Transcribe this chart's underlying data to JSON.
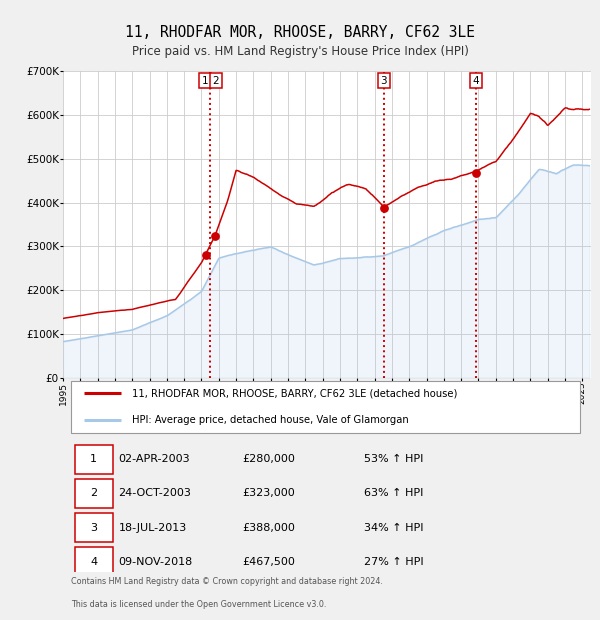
{
  "title": "11, RHODFAR MOR, RHOOSE, BARRY, CF62 3LE",
  "subtitle": "Price paid vs. HM Land Registry's House Price Index (HPI)",
  "title_fontsize": 11,
  "subtitle_fontsize": 9,
  "background_color": "#f0f0f0",
  "plot_bg_color": "#ffffff",
  "grid_color": "#cccccc",
  "hpi_line_color": "#a8c8e8",
  "price_line_color": "#cc0000",
  "sale_marker_color": "#cc0000",
  "vline_color": "#cc0000",
  "ylim": [
    0,
    700000
  ],
  "yticks": [
    0,
    100000,
    200000,
    300000,
    400000,
    500000,
    600000,
    700000
  ],
  "ytick_labels": [
    "£0",
    "£100K",
    "£200K",
    "£300K",
    "£400K",
    "£500K",
    "£600K",
    "£700K"
  ],
  "xlim_start": 1995.0,
  "xlim_end": 2025.5,
  "xtick_years": [
    1995,
    1996,
    1997,
    1998,
    1999,
    2000,
    2001,
    2002,
    2003,
    2004,
    2005,
    2006,
    2007,
    2008,
    2009,
    2010,
    2011,
    2012,
    2013,
    2014,
    2015,
    2016,
    2017,
    2018,
    2019,
    2020,
    2021,
    2022,
    2023,
    2024,
    2025
  ],
  "sales": [
    {
      "num": 1,
      "date": "02-APR-2003",
      "year": 2003.25,
      "price": 280000,
      "pct": "53% ↑ HPI"
    },
    {
      "num": 2,
      "date": "24-OCT-2003",
      "year": 2003.8,
      "price": 323000,
      "pct": "63% ↑ HPI"
    },
    {
      "num": 3,
      "date": "18-JUL-2013",
      "year": 2013.54,
      "price": 388000,
      "pct": "34% ↑ HPI"
    },
    {
      "num": 4,
      "date": "09-NOV-2018",
      "year": 2018.85,
      "price": 467500,
      "pct": "27% ↑ HPI"
    }
  ],
  "label_property": "11, RHODFAR MOR, RHOOSE, BARRY, CF62 3LE (detached house)",
  "label_hpi": "HPI: Average price, detached house, Vale of Glamorgan",
  "footer_line1": "Contains HM Land Registry data © Crown copyright and database right 2024.",
  "footer_line2": "This data is licensed under the Open Government Licence v3.0.",
  "hpi_waypoints_x": [
    1995.0,
    1997.0,
    1999.0,
    2001.0,
    2003.0,
    2004.0,
    2005.5,
    2007.0,
    2008.5,
    2009.5,
    2011.0,
    2013.5,
    2015.0,
    2017.0,
    2019.0,
    2020.0,
    2021.5,
    2022.5,
    2023.5,
    2024.5,
    2025.5
  ],
  "hpi_waypoints_y": [
    82000,
    95000,
    108000,
    140000,
    195000,
    270000,
    285000,
    295000,
    270000,
    255000,
    270000,
    275000,
    295000,
    330000,
    355000,
    360000,
    420000,
    470000,
    460000,
    480000,
    478000
  ],
  "prop_waypoints_x": [
    1995.0,
    1997.0,
    1999.0,
    2001.5,
    2003.0,
    2003.25,
    2003.8,
    2004.5,
    2005.0,
    2006.0,
    2007.0,
    2008.5,
    2009.5,
    2010.5,
    2011.5,
    2012.5,
    2013.54,
    2014.5,
    2015.5,
    2016.5,
    2017.5,
    2018.85,
    2019.5,
    2020.0,
    2021.0,
    2022.0,
    2022.5,
    2023.0,
    2023.5,
    2024.0,
    2024.5,
    2025.5
  ],
  "prop_waypoints_y": [
    135000,
    148000,
    155000,
    178000,
    260000,
    280000,
    323000,
    400000,
    470000,
    455000,
    430000,
    395000,
    390000,
    420000,
    440000,
    430000,
    388000,
    410000,
    430000,
    445000,
    450000,
    467500,
    480000,
    490000,
    540000,
    600000,
    590000,
    570000,
    590000,
    610000,
    605000,
    610000
  ]
}
